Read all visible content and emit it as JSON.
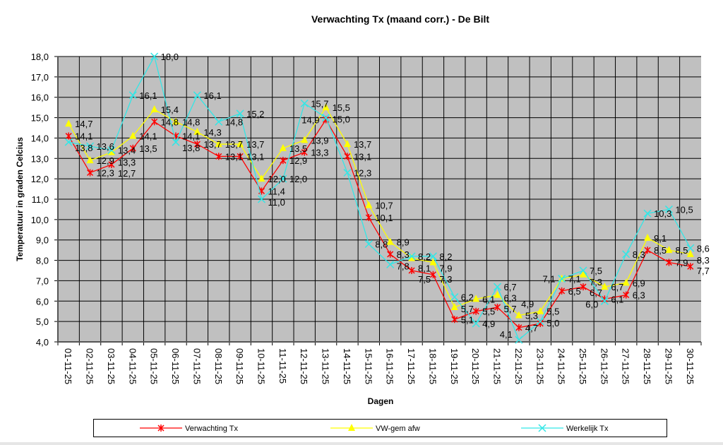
{
  "chart_data": {
    "type": "line",
    "title": "Verwachting Tx (maand corr.) - De Bilt",
    "xlabel": "Dagen",
    "ylabel": "Temperatuur in graden Celcius",
    "ylim": [
      4.0,
      18.0
    ],
    "yticks": [
      "4,0",
      "5,0",
      "6,0",
      "7,0",
      "8,0",
      "9,0",
      "10,0",
      "11,0",
      "12,0",
      "13,0",
      "14,0",
      "15,0",
      "16,0",
      "17,0",
      "18,0"
    ],
    "grid": true,
    "legend_position": "bottom",
    "categories": [
      "01-11-25",
      "02-11-25",
      "03-11-25",
      "04-11-25",
      "05-11-25",
      "06-11-25",
      "07-11-25",
      "08-11-25",
      "09-11-25",
      "10-11-25",
      "11-11-25",
      "12-11-25",
      "13-11-25",
      "14-11-25",
      "15-11-25",
      "16-11-25",
      "17-11-25",
      "18-11-25",
      "19-11-25",
      "20-11-25",
      "21-11-25",
      "22-11-25",
      "23-11-25",
      "24-11-25",
      "25-11-25",
      "26-11-25",
      "27-11-25",
      "28-11-25",
      "29-11-25",
      "30-11-25"
    ],
    "series": [
      {
        "name": "Verwachting Tx",
        "color": "#ff0000",
        "marker": "star",
        "values": [
          14.1,
          12.3,
          12.7,
          13.5,
          14.8,
          14.1,
          13.7,
          13.1,
          13.1,
          11.4,
          12.9,
          13.3,
          14.9,
          13.1,
          10.1,
          8.3,
          7.5,
          7.3,
          5.1,
          5.5,
          5.7,
          4.7,
          4.9,
          6.5,
          6.7,
          6.1,
          6.3,
          8.5,
          7.9,
          7.7
        ]
      },
      {
        "name": "VW-gem afw",
        "color": "#ffff00",
        "marker": "triangle",
        "values": [
          14.7,
          12.9,
          13.3,
          14.1,
          15.4,
          14.8,
          14.3,
          13.7,
          13.7,
          12.0,
          13.5,
          13.9,
          15.5,
          13.7,
          10.7,
          8.9,
          8.1,
          7.9,
          5.7,
          6.1,
          6.3,
          5.3,
          5.5,
          7.1,
          7.3,
          6.7,
          6.9,
          9.1,
          8.5,
          8.3
        ]
      },
      {
        "name": "Werkelijk Tx",
        "color": "#33e6e6",
        "marker": "x",
        "values": [
          13.8,
          13.6,
          13.4,
          16.1,
          18.0,
          13.8,
          16.1,
          14.8,
          15.2,
          11.0,
          12.0,
          15.7,
          15.0,
          12.3,
          8.8,
          7.8,
          8.2,
          8.2,
          6.2,
          4.9,
          6.7,
          4.1,
          5.0,
          7.1,
          7.5,
          6.0,
          8.3,
          10.3,
          10.5,
          8.6
        ]
      }
    ]
  }
}
